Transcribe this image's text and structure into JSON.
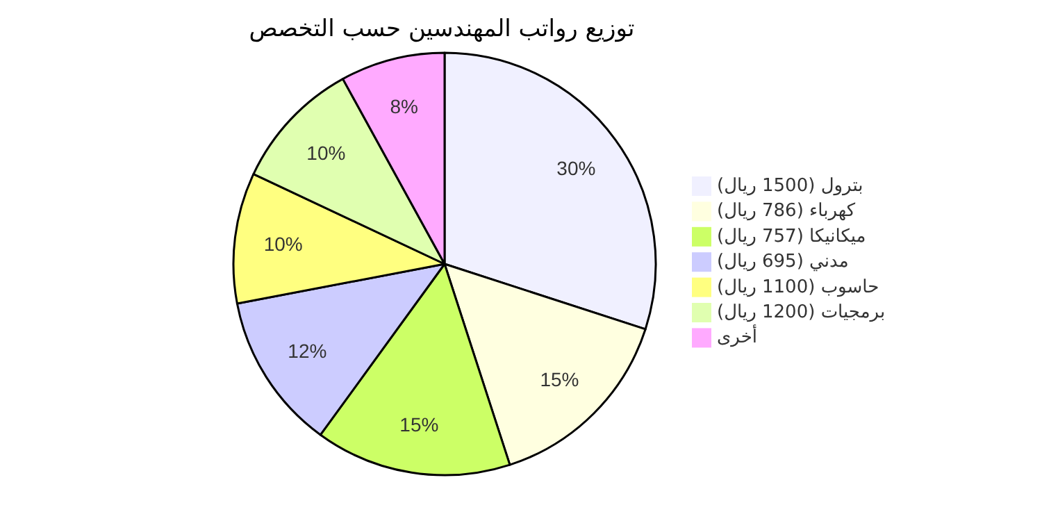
{
  "chart_data": {
    "type": "pie",
    "title": "توزيع رواتب المهندسين حسب التخصص",
    "categories": [
      "بترول (1500 ريال)",
      "كهرباء (786 ريال)",
      "ميكانيكا (757 ريال)",
      "مدني (695 ريال)",
      "حاسوب (1100 ريال)",
      "برمجيات (1200 ريال)",
      "أخرى"
    ],
    "values": [
      30,
      15,
      15,
      12,
      10,
      10,
      8
    ],
    "value_labels": [
      "30%",
      "15%",
      "15%",
      "12%",
      "10%",
      "10%",
      "8%"
    ],
    "colors": [
      "#f0f0ff",
      "#ffffe0",
      "#ccff66",
      "#ccccff",
      "#ffff80",
      "#e0ffb0",
      "#ffaaff"
    ],
    "legend": "right"
  }
}
